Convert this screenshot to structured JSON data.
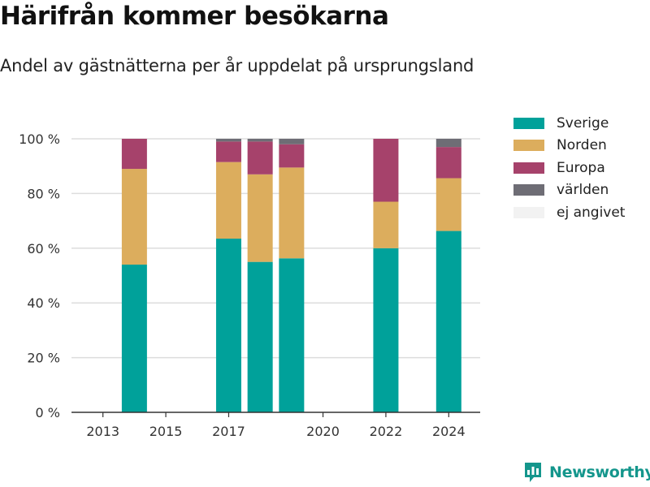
{
  "header": {
    "title": "Härifrån kommer besökarna",
    "subtitle": "Andel av gästnätterna per år uppdelat på ursprungsland"
  },
  "brand": {
    "name": "Newsworthy",
    "icon": "newsworthy-logo-icon",
    "color": "#14968c"
  },
  "chart_data": {
    "type": "bar",
    "stacked": true,
    "x": [
      2014,
      2017,
      2018,
      2019,
      2022,
      2024
    ],
    "x_ticks": [
      "2013",
      "2015",
      "2017",
      "2020",
      "2022",
      "2024"
    ],
    "x_tick_values": [
      2013,
      2015,
      2017,
      2020,
      2022,
      2024
    ],
    "xlim": [
      2012.0,
      2025.0
    ],
    "ylim": [
      0,
      100
    ],
    "y_ticks": [
      "0 %",
      "20 %",
      "40 %",
      "60 %",
      "80 %",
      "100 %"
    ],
    "y_tick_values": [
      0,
      20,
      40,
      60,
      80,
      100
    ],
    "grid": true,
    "legend_position": "top-right",
    "series": [
      {
        "name": "Sverige",
        "color": "#00a19a",
        "values": [
          54,
          63.5,
          55,
          56.3,
          60,
          66.3
        ]
      },
      {
        "name": "Norden",
        "color": "#dcad5d",
        "values": [
          35,
          28,
          32,
          33.2,
          17,
          19.3
        ]
      },
      {
        "name": "Europa",
        "color": "#a6426b",
        "values": [
          11,
          7.5,
          12,
          8.5,
          23,
          11.4
        ]
      },
      {
        "name": "världen",
        "color": "#6e6d75",
        "values": [
          0,
          1,
          1,
          2,
          0,
          3
        ]
      },
      {
        "name": "ej angivet",
        "color": "#f2f2f2",
        "values": [
          0,
          0,
          0,
          0,
          0,
          0
        ]
      }
    ]
  }
}
